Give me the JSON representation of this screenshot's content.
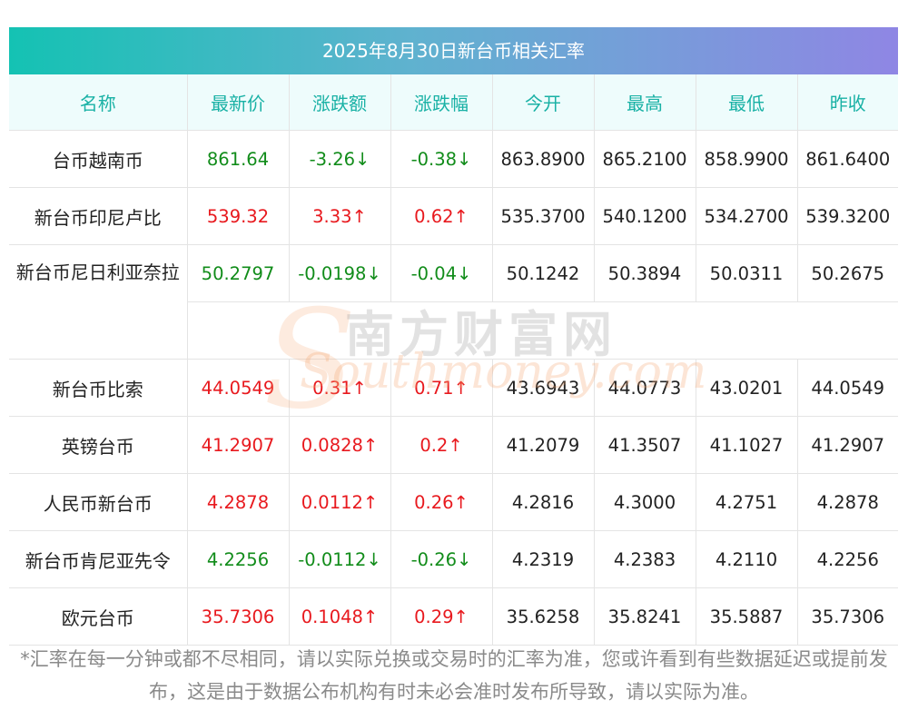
{
  "title": "2025年8月30日新台币相关汇率",
  "headers": [
    "名称",
    "最新价",
    "涨跌额",
    "涨跌幅",
    "今开",
    "最高",
    "最低",
    "昨收"
  ],
  "rows": [
    {
      "name": "台币越南币",
      "last": "861.64",
      "chg": "-3.26↓",
      "pct": "-0.38↓",
      "open": "863.8900",
      "high": "865.2100",
      "low": "858.9900",
      "prev": "861.6400",
      "dir": "down"
    },
    {
      "name": "新台币印尼卢比",
      "last": "539.32",
      "chg": "3.33↑",
      "pct": "0.62↑",
      "open": "535.3700",
      "high": "540.1200",
      "low": "534.2700",
      "prev": "539.3200",
      "dir": "up"
    },
    {
      "name": "新台币尼日利亚奈拉",
      "last": "50.2797",
      "chg": "-0.0198↓",
      "pct": "-0.04↓",
      "open": "50.1242",
      "high": "50.3894",
      "low": "50.0311",
      "prev": "50.2675",
      "dir": "down"
    },
    {
      "name": "新台币比索",
      "last": "44.0549",
      "chg": "0.31↑",
      "pct": "0.71↑",
      "open": "43.6943",
      "high": "44.0773",
      "low": "43.0201",
      "prev": "44.0549",
      "dir": "up"
    },
    {
      "name": "英镑台币",
      "last": "41.2907",
      "chg": "0.0828↑",
      "pct": "0.2↑",
      "open": "41.2079",
      "high": "41.3507",
      "low": "41.1027",
      "prev": "41.2907",
      "dir": "up"
    },
    {
      "name": "人民币新台币",
      "last": "4.2878",
      "chg": "0.0112↑",
      "pct": "0.26↑",
      "open": "4.2816",
      "high": "4.3000",
      "low": "4.2751",
      "prev": "4.2878",
      "dir": "up"
    },
    {
      "name": "新台币肯尼亚先令",
      "last": "4.2256",
      "chg": "-0.0112↓",
      "pct": "-0.26↓",
      "open": "4.2319",
      "high": "4.2383",
      "low": "4.2110",
      "prev": "4.2256",
      "dir": "down"
    },
    {
      "name": "欧元台币",
      "last": "35.7306",
      "chg": "0.1048↑",
      "pct": "0.29↑",
      "open": "35.6258",
      "high": "35.8241",
      "low": "35.5887",
      "prev": "35.7306",
      "dir": "up"
    }
  ],
  "watermark": {
    "cn": "南方财富网",
    "en": "Southmoney.com"
  },
  "footnote": "*汇率在每一分钟或都不尽相同，请以实际兑换或交易时的汇率为准，您或许看到有些数据延迟或提前发布，这是由于数据公布机构有时未必会准时发布所导致，请以实际为准。",
  "colors": {
    "up": "#e8191e",
    "down": "#118c1a",
    "header_text": "#19b1a5",
    "header_bg": "#eefcfc",
    "title_gradient_start": "#14c2b3",
    "title_gradient_end": "#8f86e4"
  }
}
